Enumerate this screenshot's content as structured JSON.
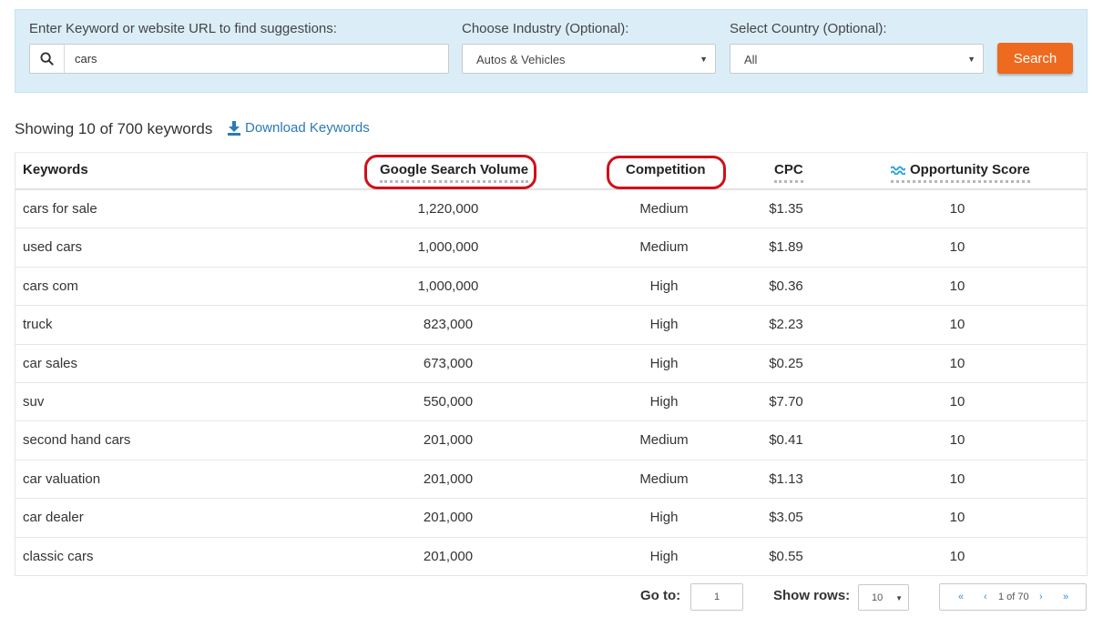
{
  "search": {
    "keyword_label": "Enter Keyword or website URL to find suggestions:",
    "keyword_value": "cars",
    "industry_label": "Choose Industry (Optional):",
    "industry_value": "Autos & Vehicles",
    "country_label": "Select Country (Optional):",
    "country_value": "All",
    "button_label": "Search",
    "button_color": "#ee6a1e"
  },
  "summary": {
    "text": "Showing 10 of 700 keywords",
    "download_label": "Download Keywords"
  },
  "table": {
    "headers": {
      "keywords": "Keywords",
      "volume": "Google Search Volume",
      "competition": "Competition",
      "cpc": "CPC",
      "opportunity": "Opportunity Score"
    },
    "highlight_color": "#d0101a",
    "rows": [
      {
        "keyword": "cars for sale",
        "volume": "1,220,000",
        "competition": "Medium",
        "cpc": "$1.35",
        "score": "10"
      },
      {
        "keyword": "used cars",
        "volume": "1,000,000",
        "competition": "Medium",
        "cpc": "$1.89",
        "score": "10"
      },
      {
        "keyword": "cars com",
        "volume": "1,000,000",
        "competition": "High",
        "cpc": "$0.36",
        "score": "10"
      },
      {
        "keyword": "truck",
        "volume": "823,000",
        "competition": "High",
        "cpc": "$2.23",
        "score": "10"
      },
      {
        "keyword": "car sales",
        "volume": "673,000",
        "competition": "High",
        "cpc": "$0.25",
        "score": "10"
      },
      {
        "keyword": "suv",
        "volume": "550,000",
        "competition": "High",
        "cpc": "$7.70",
        "score": "10"
      },
      {
        "keyword": "second hand cars",
        "volume": "201,000",
        "competition": "Medium",
        "cpc": "$0.41",
        "score": "10"
      },
      {
        "keyword": "car valuation",
        "volume": "201,000",
        "competition": "Medium",
        "cpc": "$1.13",
        "score": "10"
      },
      {
        "keyword": "car dealer",
        "volume": "201,000",
        "competition": "High",
        "cpc": "$3.05",
        "score": "10"
      },
      {
        "keyword": "classic cars",
        "volume": "201,000",
        "competition": "High",
        "cpc": "$0.55",
        "score": "10"
      }
    ]
  },
  "footer": {
    "goto_label": "Go to:",
    "goto_value": "1",
    "rows_label": "Show rows:",
    "rows_value": "10",
    "pager": {
      "first": "«",
      "prev": "‹",
      "page_text": "1 of 70",
      "next": "›",
      "last": "»"
    }
  }
}
